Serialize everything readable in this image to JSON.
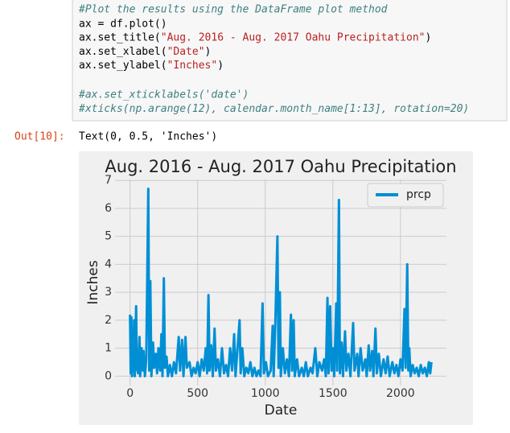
{
  "code_cell": {
    "blocks": [
      {
        "lines": [
          "#Plot the results using the DataFrame plot method",
          "ax = df.plot()",
          "ax.set_title(\"Aug. 2016 - Aug. 2017 Oahu Precipitation\")",
          "ax.set_xlabel(\"Date\")",
          "ax.set_ylabel(\"Inches\")"
        ]
      },
      {
        "lines": [
          "#ax.set_xticklabels('date')",
          "#xticks(np.arange(12), calendar.month_name[1:13], rotation=20)"
        ]
      }
    ]
  },
  "output": {
    "prompt": "Out[10]:",
    "text": "Text(0, 0.5, 'Inches')"
  },
  "chart_data": {
    "type": "line",
    "title": "Aug. 2016 - Aug. 2017 Oahu Precipitation",
    "x_label": "Date",
    "y_label": "Inches",
    "x": [
      0,
      5,
      10,
      15,
      20,
      25,
      30,
      35,
      45,
      50,
      60,
      70,
      75,
      85,
      95,
      100,
      110,
      120,
      135,
      142,
      150,
      158,
      170,
      178,
      190,
      200,
      210,
      222,
      232,
      240,
      250,
      258,
      270,
      280,
      295,
      310,
      325,
      340,
      360,
      370,
      385,
      395,
      410,
      420,
      440,
      455,
      470,
      485,
      500,
      515,
      530,
      545,
      560,
      570,
      580,
      588,
      600,
      612,
      625,
      635,
      650,
      665,
      680,
      695,
      710,
      725,
      740,
      755,
      770,
      780,
      795,
      810,
      818,
      830,
      845,
      860,
      875,
      890,
      905,
      920,
      935,
      950,
      965,
      980,
      990,
      1005,
      1020,
      1040,
      1055,
      1062,
      1075,
      1090,
      1098,
      1108,
      1115,
      1130,
      1145,
      1160,
      1175,
      1190,
      1198,
      1210,
      1218,
      1235,
      1250,
      1270,
      1285,
      1300,
      1315,
      1335,
      1350,
      1370,
      1385,
      1400,
      1420,
      1435,
      1448,
      1460,
      1468,
      1480,
      1490,
      1500,
      1510,
      1525,
      1532,
      1545,
      1552,
      1565,
      1575,
      1590,
      1600,
      1615,
      1630,
      1650,
      1660,
      1680,
      1690,
      1705,
      1720,
      1740,
      1750,
      1765,
      1775,
      1790,
      1800,
      1815,
      1825,
      1840,
      1855,
      1875,
      1890,
      1905,
      1920,
      1940,
      1955,
      1970,
      1985,
      2000,
      2015,
      2030,
      2038,
      2050,
      2058,
      2065,
      2075,
      2090,
      2105,
      2120,
      2135,
      2150,
      2165,
      2180,
      2195,
      2210,
      2220,
      2229
    ],
    "series": [
      {
        "name": "prcp",
        "color": "#008fd5",
        "values": [
          2.2,
          0.1,
          2.1,
          0,
          1.2,
          0.2,
          2.0,
          0,
          2.5,
          0.3,
          0.1,
          1.4,
          0,
          1.0,
          0.2,
          0.9,
          0,
          0.6,
          6.7,
          0.2,
          3.4,
          0,
          1.2,
          0.3,
          0.8,
          0.1,
          1.0,
          0.2,
          1.5,
          0,
          3.5,
          0.3,
          0.7,
          0,
          0.4,
          0,
          0.5,
          0.1,
          1.4,
          0.2,
          1.3,
          0,
          1.4,
          0.3,
          0.5,
          0,
          0.3,
          0.1,
          0.5,
          0,
          0.6,
          0.2,
          1.0,
          0.1,
          2.9,
          0.2,
          1.1,
          0,
          1.7,
          0.2,
          0.6,
          0,
          1.0,
          0.1,
          0.4,
          0,
          1.0,
          0.2,
          1.5,
          0,
          1.0,
          2.0,
          0.1,
          1.0,
          0,
          0.3,
          0.1,
          0.5,
          0,
          0.3,
          0,
          0.2,
          0,
          2.6,
          0.1,
          0.5,
          0,
          0.2,
          1.8,
          0,
          2.0,
          5.0,
          0.3,
          3.0,
          0,
          1.0,
          0.1,
          0.6,
          0,
          2.2,
          0.2,
          2.0,
          0,
          0.6,
          0,
          0.3,
          0,
          0.5,
          0,
          0.3,
          0.1,
          1.0,
          0,
          0.5,
          0.2,
          0.6,
          0,
          2.8,
          0.1,
          2.5,
          0.2,
          1.0,
          0,
          2.6,
          0.2,
          6.3,
          0.1,
          1.2,
          0,
          1.6,
          0.2,
          0.8,
          0,
          1.9,
          0.2,
          0.8,
          0,
          1.0,
          0.2,
          0.6,
          0,
          1.1,
          0.2,
          0.9,
          0,
          1.7,
          0.1,
          0.8,
          0,
          0.6,
          0.1,
          0.7,
          0,
          0.5,
          0.1,
          0.4,
          0,
          0.6,
          0.2,
          2.4,
          0.3,
          4.0,
          0.2,
          1.0,
          0,
          0.4,
          0.1,
          0.3,
          0,
          0.4,
          0.1,
          0.3,
          0,
          0.5,
          0.1,
          0.5
        ]
      }
    ],
    "xlim": [
      -111,
      2340
    ],
    "ylim": [
      -0.335,
      7.035
    ],
    "xticks": [
      0,
      500,
      1000,
      1500,
      2000
    ],
    "yticks": [
      0,
      1,
      2,
      3,
      4,
      5,
      6,
      7
    ],
    "grid": true,
    "legend": "upper right"
  }
}
